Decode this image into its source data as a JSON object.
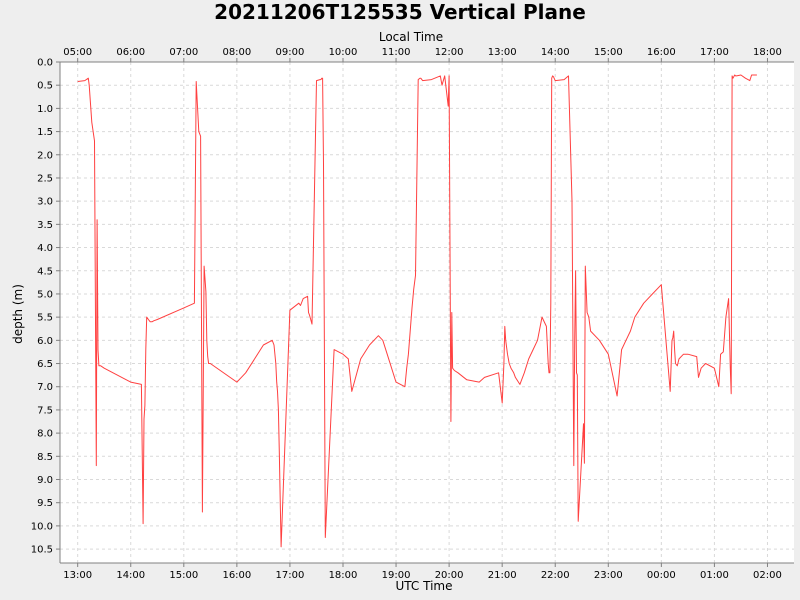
{
  "chart_data": {
    "type": "line",
    "title": "20211206T125535 Vertical Plane",
    "xlabel": "UTC Time",
    "x2label": "Local Time",
    "ylabel": "depth (m)",
    "y_inverted": true,
    "ylim": [
      0.0,
      10.8
    ],
    "xlim": [
      "12:40",
      "02:30"
    ],
    "grid": true,
    "line_color": "#ff4040",
    "yticks": [
      "0.0",
      "0.5",
      "1.0",
      "1.5",
      "2.0",
      "2.5",
      "3.0",
      "3.5",
      "4.0",
      "4.5",
      "5.0",
      "5.5",
      "6.0",
      "6.5",
      "7.0",
      "7.5",
      "8.0",
      "8.5",
      "9.0",
      "9.5",
      "10.0",
      "10.5"
    ],
    "x_ticks": [
      "13:00",
      "14:00",
      "15:00",
      "16:00",
      "17:00",
      "18:00",
      "19:00",
      "20:00",
      "21:00",
      "22:00",
      "23:00",
      "00:00",
      "01:00",
      "02:00"
    ],
    "x2_ticks": [
      "05:00",
      "06:00",
      "07:00",
      "08:00",
      "09:00",
      "10:00",
      "11:00",
      "12:00",
      "13:00",
      "14:00",
      "15:00",
      "16:00",
      "17:00",
      "18:00"
    ],
    "series": [
      {
        "x": [
          "13:00",
          "13:08",
          "13:12",
          "13:13",
          "13:16",
          "13:19",
          "13:21",
          "13:22",
          "13:23",
          "13:24",
          "13:26",
          "13:30",
          "14:00",
          "14:12",
          "14:14",
          "14:15",
          "14:16",
          "14:17",
          "14:18",
          "14:20",
          "14:22",
          "14:24",
          "14:26",
          "14:30",
          "15:00",
          "15:12",
          "15:14",
          "15:15",
          "15:17",
          "15:19",
          "15:21",
          "15:23",
          "15:25",
          "15:26",
          "15:27",
          "15:28",
          "15:30",
          "16:00",
          "16:10",
          "16:20",
          "16:30",
          "16:40",
          "16:42",
          "16:44",
          "16:45",
          "16:46",
          "16:47",
          "16:48",
          "16:50",
          "17:00",
          "17:10",
          "17:12",
          "17:15",
          "17:20",
          "17:21",
          "17:22",
          "17:25",
          "17:30",
          "17:34",
          "17:35",
          "17:36",
          "17:37",
          "17:38",
          "17:40",
          "17:50",
          "18:00",
          "18:06",
          "18:10",
          "18:20",
          "18:30",
          "18:40",
          "18:45",
          "18:50",
          "19:00",
          "19:10",
          "19:12",
          "19:14",
          "19:16",
          "19:18",
          "19:20",
          "19:22",
          "19:25",
          "19:27",
          "19:28",
          "19:30",
          "19:40",
          "19:50",
          "19:52",
          "19:55",
          "19:59",
          "20:00",
          "20:02",
          "20:03",
          "20:04",
          "20:06",
          "20:10",
          "20:20",
          "20:34",
          "20:40",
          "20:56",
          "21:00",
          "21:02",
          "21:03",
          "21:04",
          "21:06",
          "21:08",
          "21:10",
          "21:13",
          "21:15",
          "21:20",
          "21:25",
          "21:30",
          "21:35",
          "21:40",
          "21:45",
          "21:50",
          "21:52",
          "21:53",
          "21:54",
          "21:55",
          "21:56",
          "21:57",
          "21:58",
          "22:00",
          "22:10",
          "22:15",
          "22:19",
          "22:21",
          "22:22",
          "22:23",
          "22:24",
          "22:25",
          "22:26",
          "22:32",
          "22:33",
          "22:34",
          "22:36",
          "22:38",
          "22:40",
          "22:50",
          "23:00",
          "23:10",
          "23:12",
          "23:15",
          "23:20",
          "23:25",
          "23:30",
          "23:40",
          "23:50",
          "00:00",
          "00:10",
          "00:12",
          "00:13",
          "00:14",
          "00:15",
          "00:16",
          "00:18",
          "00:20",
          "00:25",
          "00:30",
          "00:40",
          "00:42",
          "00:45",
          "00:50",
          "01:00",
          "01:05",
          "01:07",
          "01:10",
          "01:13",
          "01:16",
          "01:18",
          "01:19",
          "01:20",
          "01:21",
          "01:23",
          "01:24",
          "01:25",
          "01:30",
          "01:35",
          "01:40",
          "01:42",
          "01:48"
        ],
        "y": [
          0.42,
          0.4,
          0.35,
          0.5,
          1.3,
          1.7,
          8.7,
          3.4,
          6.2,
          6.55,
          6.55,
          6.6,
          6.9,
          6.95,
          9.95,
          7.7,
          7.4,
          6.2,
          5.5,
          5.55,
          5.6,
          5.6,
          5.58,
          5.55,
          5.3,
          5.2,
          0.42,
          0.8,
          1.5,
          1.6,
          9.7,
          4.4,
          4.95,
          6.0,
          6.35,
          6.5,
          6.5,
          6.9,
          6.7,
          6.4,
          6.1,
          6.0,
          6.1,
          6.5,
          6.9,
          7.1,
          7.5,
          8.4,
          10.45,
          5.35,
          5.2,
          5.25,
          5.1,
          5.05,
          5.4,
          5.45,
          5.65,
          0.4,
          0.38,
          0.38,
          0.35,
          0.35,
          2.2,
          10.25,
          6.2,
          6.3,
          6.4,
          7.1,
          6.4,
          6.1,
          5.9,
          6.0,
          6.3,
          6.9,
          7.0,
          6.6,
          6.3,
          5.8,
          5.3,
          4.9,
          4.6,
          0.38,
          0.35,
          0.35,
          0.4,
          0.38,
          0.3,
          0.5,
          0.3,
          0.95,
          0.3,
          7.75,
          5.4,
          6.6,
          6.65,
          6.7,
          6.85,
          6.9,
          6.8,
          6.7,
          7.35,
          6.5,
          5.7,
          6.0,
          6.3,
          6.5,
          6.6,
          6.7,
          6.8,
          6.95,
          6.7,
          6.4,
          6.2,
          6.0,
          5.5,
          5.7,
          6.5,
          6.7,
          6.7,
          5.2,
          0.35,
          0.3,
          0.32,
          0.4,
          0.38,
          0.3,
          3.0,
          8.7,
          6.0,
          4.5,
          6.7,
          6.75,
          9.9,
          7.8,
          8.65,
          4.4,
          5.4,
          5.5,
          5.8,
          6.0,
          6.3,
          7.2,
          6.8,
          6.2,
          6.0,
          5.8,
          5.5,
          5.2,
          5.0,
          4.8,
          7.1,
          6.0,
          5.95,
          5.8,
          6.2,
          6.5,
          6.55,
          6.4,
          6.3,
          6.3,
          6.35,
          6.8,
          6.6,
          6.5,
          6.6,
          7.0,
          6.3,
          6.25,
          5.5,
          5.1,
          6.6,
          7.15,
          0.3,
          0.35,
          0.28,
          0.3,
          0.3,
          0.28,
          0.35,
          0.4,
          0.28,
          0.28
        ]
      }
    ]
  }
}
